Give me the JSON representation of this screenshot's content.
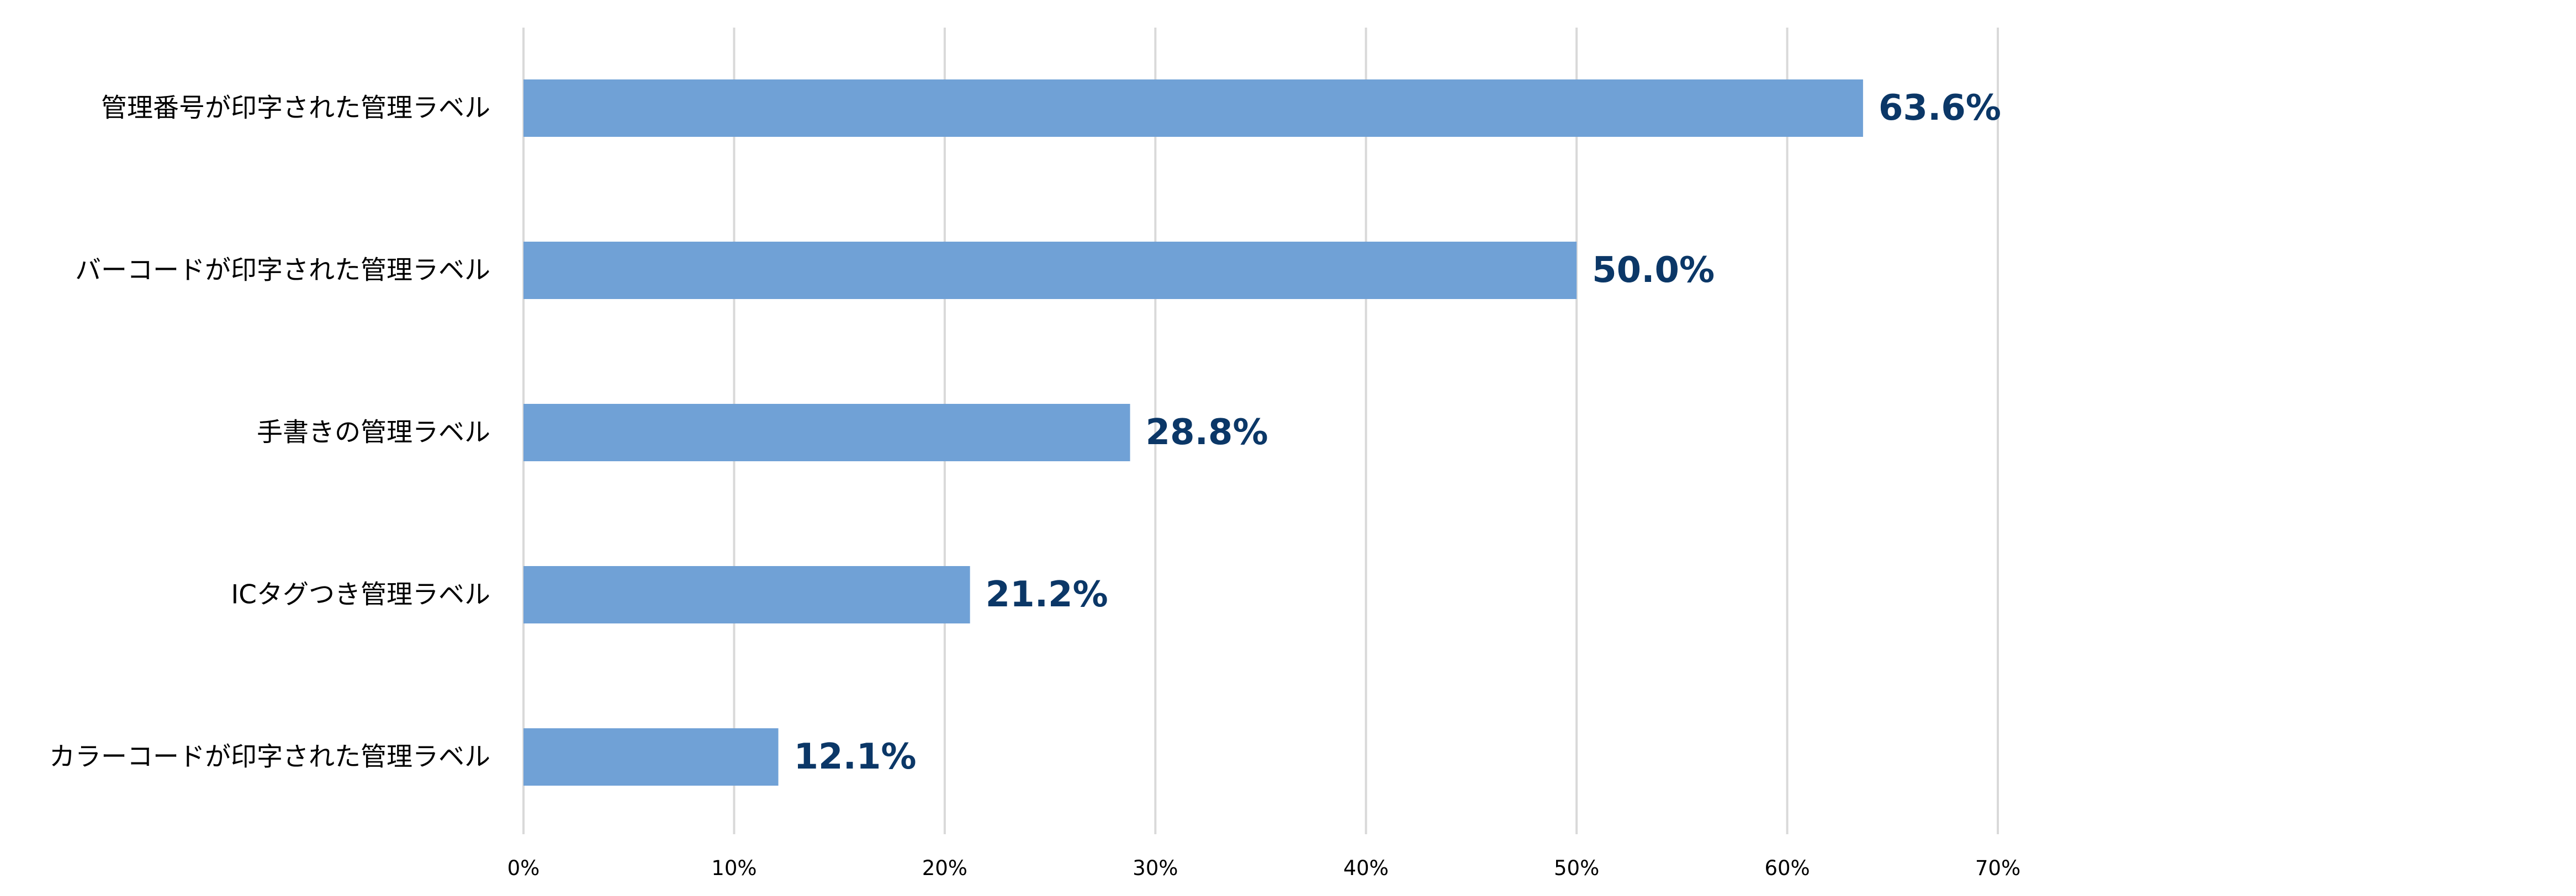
{
  "chart_data": {
    "type": "bar",
    "orientation": "horizontal",
    "title": "",
    "xlabel": "",
    "ylabel": "",
    "categories": [
      "管理番号が印字された管理ラベル",
      "バーコードが印字された管理ラベル",
      "手書きの管理ラベル",
      "ICタグつき管理ラベル",
      "カラーコードが印字された管理ラベル"
    ],
    "values": [
      63.6,
      50.0,
      28.8,
      21.2,
      12.1
    ],
    "data_labels": [
      "63.6%",
      "50.0%",
      "28.8%",
      "21.2%",
      "12.1%"
    ],
    "xlim": [
      0,
      70
    ],
    "x_ticks": [
      0,
      10,
      20,
      30,
      40,
      50,
      60,
      70
    ],
    "x_tick_labels": [
      "0%",
      "10%",
      "20%",
      "30%",
      "40%",
      "50%",
      "60%",
      "70%"
    ],
    "grid": "vertical",
    "legend": "none",
    "colors": {
      "bar": "#70a1d6",
      "data_label": "#0b3767",
      "gridline": "#d9d9d9",
      "text": "#000000"
    }
  }
}
